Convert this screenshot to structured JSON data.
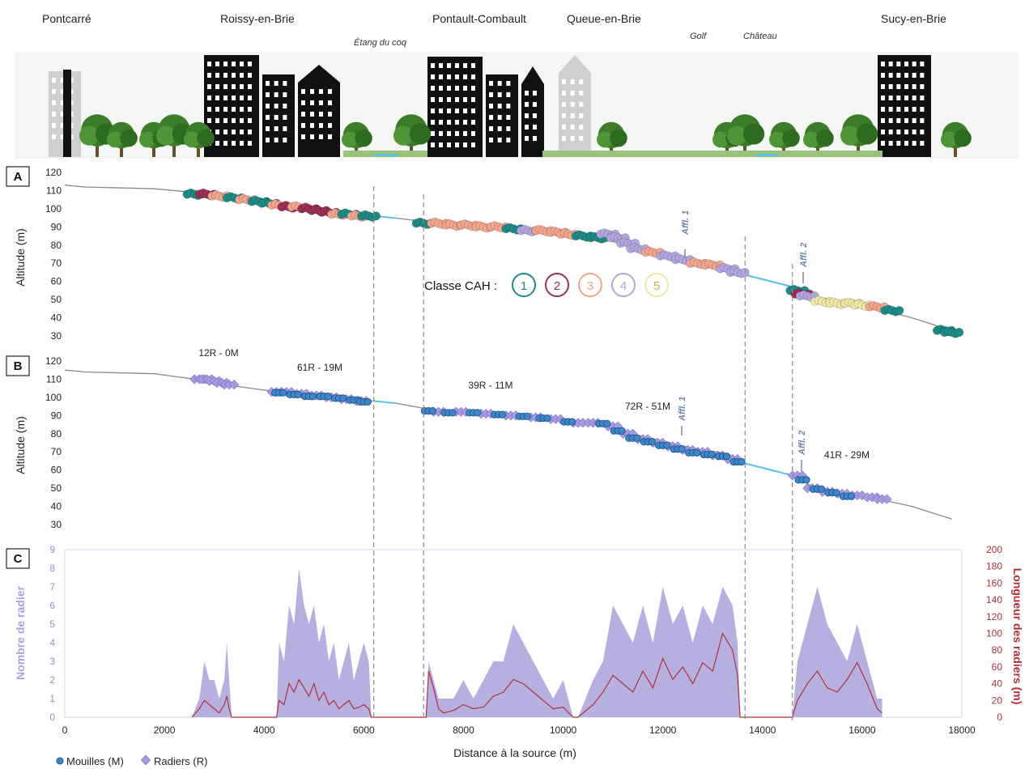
{
  "towns": [
    "Pontcarré",
    "Roissy-en-Brie",
    "Pontault-Combault",
    "Queue-en-Brie",
    "Sucy-en-Brie"
  ],
  "sites": [
    "Étang du coq",
    "Golf",
    "Château"
  ],
  "panels": [
    "A",
    "B",
    "C"
  ],
  "colors": {
    "profile": "#8a8a8a",
    "water": "#5bc2e7",
    "class1": "#1f8b86",
    "class2": "#9c2f55",
    "class3": "#f3a58d",
    "class4": "#b3a6e0",
    "class5": "#f0e8a6",
    "mouilles": "#3f86c8",
    "radiers": "#a79be0",
    "area_count": "#a9a2dc",
    "line_length": "#b0303c"
  },
  "legend_cah": {
    "label": "Classe CAH :",
    "classes": [
      "1",
      "2",
      "3",
      "4",
      "5"
    ]
  },
  "chart_data": [
    {
      "panel": "A",
      "type": "scatter",
      "ylabel": "Altitude (m)",
      "ylim": [
        30,
        120
      ],
      "yticks": [
        120,
        110,
        100,
        90,
        80,
        70,
        60,
        50,
        40,
        30
      ],
      "xlim": [
        0,
        18000
      ],
      "profile": {
        "x": [
          0,
          400,
          1800,
          2600,
          3200,
          4000,
          4600,
          5200,
          5800,
          6200,
          6600,
          7200,
          8000,
          9000,
          10000,
          10800,
          11200,
          12000,
          12600,
          13300,
          13600,
          14600,
          15000,
          16000,
          17000,
          17800
        ],
        "y": [
          113,
          112,
          111,
          109,
          107,
          104,
          101,
          99,
          97,
          96,
          95,
          93,
          91,
          89,
          86,
          84,
          80,
          76,
          72,
          68,
          64,
          57,
          52,
          47,
          40,
          33
        ]
      },
      "annotations": [
        "Affl. 1",
        "Affl. 2"
      ],
      "series": [
        {
          "x": [
            2600,
            2850,
            3100,
            3400,
            3650,
            3900,
            4100,
            4300,
            4500,
            4700,
            4900,
            5100,
            5300,
            5500,
            5700,
            5900,
            6100
          ],
          "y": [
            108,
            108,
            107,
            106,
            105,
            104,
            103,
            102,
            101,
            101,
            100,
            99,
            98,
            97,
            97,
            96,
            96
          ],
          "class": [
            1,
            2,
            3,
            1,
            3,
            1,
            1,
            3,
            2,
            3,
            2,
            2,
            2,
            3,
            1,
            3,
            1
          ]
        },
        {
          "x": [
            7200,
            7500,
            7800,
            8100,
            8400,
            8700,
            9000,
            9300,
            9600,
            9900,
            10100,
            10400,
            10700,
            10900,
            11100,
            11300,
            11500,
            11800,
            12100,
            12400,
            12700,
            13000,
            13300,
            13500
          ],
          "y": [
            92,
            92,
            91,
            91,
            90,
            90,
            89,
            88,
            88,
            87,
            86,
            85,
            84,
            86,
            84,
            81,
            78,
            76,
            74,
            72,
            70,
            69,
            67,
            65
          ],
          "class": [
            1,
            3,
            3,
            3,
            3,
            3,
            1,
            4,
            3,
            3,
            3,
            1,
            1,
            4,
            4,
            4,
            4,
            3,
            4,
            4,
            3,
            3,
            4,
            4
          ]
        },
        {
          "x": [
            14700,
            14800,
            14900,
            15200,
            15500,
            15800,
            16000,
            16300,
            16600,
            17650,
            17800
          ],
          "y": [
            55,
            53,
            52,
            49,
            48,
            48,
            47,
            46,
            44,
            33,
            32
          ],
          "class": [
            1,
            2,
            4,
            5,
            5,
            5,
            5,
            3,
            1,
            1,
            1
          ]
        }
      ]
    },
    {
      "panel": "B",
      "type": "scatter",
      "ylabel": "Altitude (m)",
      "ylim": [
        30,
        120
      ],
      "yticks": [
        120,
        110,
        100,
        90,
        80,
        70,
        60,
        50,
        40,
        30
      ],
      "xlim": [
        0,
        18000
      ],
      "profile": {
        "x": [
          0,
          400,
          1800,
          2600,
          3200,
          4000,
          4600,
          5200,
          5800,
          6200,
          6600,
          7200,
          8000,
          9000,
          10000,
          10800,
          11200,
          12000,
          12600,
          13300,
          13600,
          14600,
          15000,
          16000,
          17000,
          17800
        ],
        "y": [
          115,
          114,
          113,
          110,
          107,
          104,
          102,
          100,
          99,
          98,
          97,
          94,
          92,
          90,
          87,
          86,
          81,
          76,
          72,
          69,
          64,
          57,
          51,
          46,
          40,
          33
        ]
      },
      "reach_labels": [
        "12R - 0M",
        "61R - 19M",
        "39R - 11M",
        "72R - 51M",
        "41R - 29M"
      ],
      "annotations": [
        "Affl. 1",
        "Affl. 2"
      ],
      "series": [
        {
          "name": "Mouilles (M)",
          "x": [
            4300,
            4600,
            4900,
            5200,
            5500,
            5800,
            6000,
            7300,
            7700,
            8200,
            8700,
            9200,
            9600,
            10100,
            10800,
            11100,
            11400,
            11700,
            12000,
            12300,
            12600,
            12900,
            13200,
            13500,
            14800,
            15100,
            15400,
            15700
          ],
          "y": [
            103,
            102,
            101,
            101,
            100,
            99,
            98,
            93,
            92,
            92,
            91,
            90,
            89,
            87,
            86,
            82,
            78,
            76,
            74,
            72,
            70,
            69,
            68,
            65,
            55,
            50,
            48,
            46
          ]
        },
        {
          "name": "Radiers (R)",
          "x": [
            2700,
            2850,
            3000,
            3150,
            3300,
            4250,
            4450,
            4750,
            5050,
            5350,
            5650,
            5950,
            7500,
            7950,
            8450,
            8950,
            9450,
            9850,
            10300,
            10600,
            11000,
            11300,
            11600,
            11900,
            12200,
            12500,
            12800,
            13100,
            13400,
            14700,
            15000,
            15300,
            15600,
            15900,
            16200,
            16400
          ],
          "y": [
            110,
            110,
            109,
            108,
            107,
            103,
            103,
            102,
            101,
            100,
            99,
            98,
            92,
            92,
            91,
            90,
            89,
            88,
            86,
            86,
            84,
            80,
            77,
            75,
            73,
            71,
            70,
            68,
            66,
            57,
            50,
            48,
            47,
            46,
            45,
            44
          ]
        }
      ]
    },
    {
      "panel": "C",
      "type": "area",
      "xlabel": "Distance à la source (m)",
      "ylabel_left": "Nombre de radier",
      "ylabel_right": "Longueur des radiers (m)",
      "xlim": [
        0,
        18000
      ],
      "xticks": [
        0,
        2000,
        4000,
        6000,
        8000,
        10000,
        12000,
        14000,
        16000,
        18000
      ],
      "ylim_left": [
        0,
        9
      ],
      "yticks_left": [
        0,
        1,
        2,
        3,
        4,
        5,
        6,
        7,
        8,
        9
      ],
      "ylim_right": [
        0,
        200
      ],
      "yticks_right": [
        0,
        20,
        40,
        60,
        80,
        100,
        120,
        140,
        160,
        180,
        200
      ],
      "series": [
        {
          "name": "Nombre de radier",
          "x": [
            2550,
            2700,
            2800,
            2900,
            3000,
            3100,
            3200,
            3250,
            3300,
            3350,
            4250,
            4300,
            4400,
            4500,
            4600,
            4700,
            4800,
            4900,
            5000,
            5100,
            5200,
            5300,
            5400,
            5500,
            5600,
            5700,
            5800,
            5900,
            6000,
            6100,
            6150,
            7250,
            7300,
            7400,
            7500,
            7600,
            7800,
            8000,
            8200,
            8400,
            8600,
            8800,
            9000,
            9200,
            9400,
            9600,
            9800,
            10000,
            10200,
            10300,
            10600,
            10800,
            11000,
            11200,
            11400,
            11600,
            11800,
            12000,
            12200,
            12400,
            12600,
            12800,
            13000,
            13200,
            13400,
            13500,
            13550,
            14600,
            14700,
            14900,
            15100,
            15300,
            15500,
            15700,
            15900,
            16100,
            16300,
            16400
          ],
          "y": [
            0,
            1,
            3,
            2,
            2,
            1,
            2,
            4,
            2,
            0,
            0,
            4,
            3,
            6,
            5,
            8,
            6,
            5,
            6,
            4,
            5,
            3,
            4,
            2,
            3,
            4,
            2,
            3,
            4,
            3,
            0,
            0,
            3,
            2,
            1,
            1,
            1,
            2,
            1,
            2,
            3,
            3,
            5,
            4,
            3,
            2,
            1,
            2,
            0,
            0,
            2,
            3,
            6,
            5,
            4,
            6,
            4,
            7,
            5,
            6,
            4,
            6,
            5,
            7,
            6,
            4,
            0,
            0,
            3,
            5,
            7,
            5,
            4,
            3,
            5,
            3,
            1,
            1
          ]
        },
        {
          "name": "Longueur des radiers (m)",
          "x": [
            2550,
            2700,
            2800,
            2900,
            3000,
            3100,
            3200,
            3250,
            3300,
            3350,
            4250,
            4300,
            4400,
            4500,
            4600,
            4700,
            4800,
            4900,
            5000,
            5100,
            5200,
            5300,
            5400,
            5500,
            5600,
            5700,
            5800,
            5900,
            6000,
            6100,
            6150,
            7250,
            7300,
            7400,
            7500,
            7600,
            7800,
            8000,
            8200,
            8400,
            8600,
            8800,
            9000,
            9200,
            9400,
            9600,
            9800,
            10000,
            10200,
            10300,
            10600,
            10800,
            11000,
            11200,
            11400,
            11600,
            11800,
            12000,
            12200,
            12400,
            12600,
            12800,
            13000,
            13200,
            13400,
            13500,
            13550,
            14600,
            14700,
            14900,
            15100,
            15300,
            15500,
            15700,
            15900,
            16100,
            16300,
            16400
          ],
          "y": [
            0,
            10,
            20,
            15,
            10,
            5,
            15,
            25,
            10,
            0,
            0,
            20,
            15,
            40,
            30,
            45,
            35,
            25,
            40,
            20,
            30,
            15,
            20,
            10,
            15,
            20,
            10,
            12,
            15,
            10,
            0,
            0,
            55,
            35,
            10,
            5,
            8,
            15,
            10,
            12,
            25,
            30,
            45,
            40,
            30,
            20,
            10,
            12,
            0,
            0,
            15,
            30,
            50,
            40,
            30,
            55,
            35,
            70,
            45,
            60,
            40,
            65,
            55,
            100,
            80,
            50,
            0,
            0,
            20,
            40,
            55,
            35,
            30,
            45,
            65,
            40,
            10,
            5
          ]
        }
      ]
    }
  ],
  "legend_bottom": {
    "mouilles": "Mouilles (M)",
    "radiers": "Radiers (R)"
  }
}
